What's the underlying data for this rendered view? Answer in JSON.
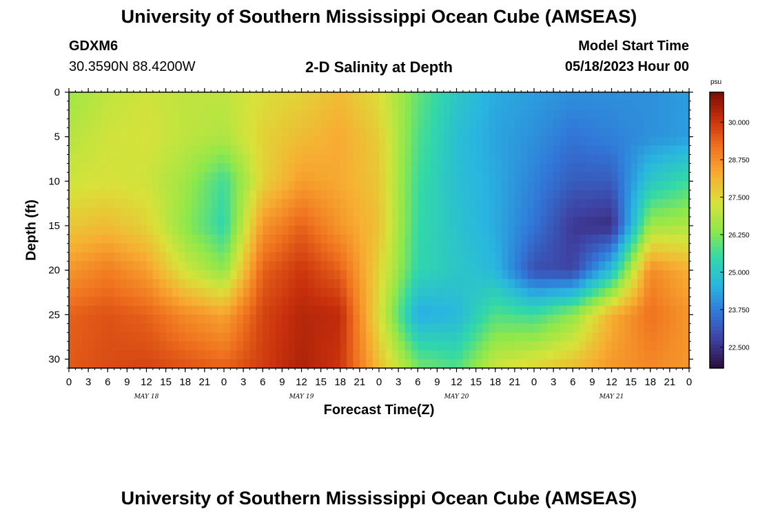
{
  "page": {
    "title_top": "University of Southern Mississippi Ocean Cube (AMSEAS)",
    "title_bottom": "University of Southern Mississippi Ocean Cube (AMSEAS)",
    "station_id": "GDXM6",
    "station_coords": "30.3590N  88.4200W",
    "plot_title": "2-D Salinity at Depth",
    "model_start_label": "Model Start Time",
    "model_start_value": "05/18/2023 Hour 00"
  },
  "chart_data": {
    "type": "heatmap",
    "title": "2-D Salinity at Depth",
    "xlabel": "Forecast Time(Z)",
    "ylabel": "Depth (ft)",
    "x_range_hours": [
      0,
      96
    ],
    "y_range_ft": [
      0,
      31
    ],
    "y_inverted": true,
    "y_ticks": [
      "0",
      "5",
      "10",
      "15",
      "20",
      "25",
      "30"
    ],
    "x_ticks": [
      "0",
      "3",
      "6",
      "9",
      "12",
      "15",
      "18",
      "21",
      "0",
      "3",
      "6",
      "9",
      "12",
      "15",
      "18",
      "21",
      "0",
      "3",
      "6",
      "9",
      "12",
      "15",
      "18",
      "21",
      "0",
      "3",
      "6",
      "9",
      "12",
      "15",
      "18",
      "21",
      "0"
    ],
    "day_labels": [
      {
        "label": "MAY 18",
        "hour": 12
      },
      {
        "label": "MAY 19",
        "hour": 36
      },
      {
        "label": "MAY 20",
        "hour": 60
      },
      {
        "label": "MAY 21",
        "hour": 84
      }
    ],
    "colorbar": {
      "unit": "psu",
      "min": 21.8,
      "max": 31.0,
      "ticks": [
        "30.000",
        "28.750",
        "27.500",
        "26.250",
        "25.000",
        "23.750",
        "22.500"
      ],
      "tick_values": [
        30.0,
        28.75,
        27.5,
        26.25,
        25.0,
        23.75,
        22.5
      ],
      "colormap": [
        "#2a0f3a",
        "#3f3f9f",
        "#3177d8",
        "#29b6e0",
        "#32d8a8",
        "#8fe84a",
        "#d8e23a",
        "#f7ae32",
        "#f0731f",
        "#c8300c",
        "#7a0d05"
      ]
    },
    "times_hours": [
      0,
      6,
      12,
      18,
      24,
      30,
      36,
      42,
      48,
      54,
      60,
      66,
      72,
      78,
      84,
      90,
      96
    ],
    "depths_ft": [
      0,
      5,
      10,
      15,
      20,
      25,
      31
    ],
    "salinity_psu": [
      [
        26.6,
        27.0,
        27.2,
        27.0,
        27.0,
        27.4,
        27.6,
        28.0,
        27.4,
        26.0,
        25.0,
        24.4,
        24.2,
        24.0,
        24.0,
        24.0,
        24.2
      ],
      [
        26.9,
        27.2,
        27.3,
        27.0,
        26.8,
        27.6,
        28.0,
        28.3,
        27.7,
        25.8,
        24.8,
        24.3,
        24.0,
        23.6,
        23.8,
        24.0,
        24.2
      ],
      [
        27.2,
        27.3,
        27.2,
        26.6,
        25.6,
        27.6,
        28.5,
        28.3,
        27.8,
        25.6,
        24.8,
        24.4,
        23.8,
        23.2,
        23.2,
        25.0,
        25.6
      ],
      [
        27.8,
        28.0,
        27.6,
        26.4,
        25.4,
        28.6,
        29.4,
        28.6,
        27.9,
        25.5,
        24.9,
        24.4,
        23.6,
        22.6,
        22.4,
        26.6,
        26.8
      ],
      [
        28.6,
        29.0,
        28.5,
        27.2,
        26.4,
        29.4,
        30.0,
        29.4,
        27.6,
        25.4,
        25.0,
        24.6,
        23.0,
        22.8,
        24.8,
        28.8,
        28.2
      ],
      [
        29.4,
        29.6,
        29.4,
        28.8,
        28.4,
        29.8,
        30.3,
        30.2,
        27.4,
        24.4,
        24.6,
        25.8,
        25.6,
        26.4,
        28.2,
        29.2,
        28.6
      ],
      [
        29.5,
        29.7,
        29.8,
        29.6,
        29.4,
        29.9,
        30.4,
        30.0,
        28.0,
        26.2,
        25.8,
        27.2,
        27.6,
        28.0,
        28.6,
        28.8,
        28.6
      ]
    ]
  }
}
